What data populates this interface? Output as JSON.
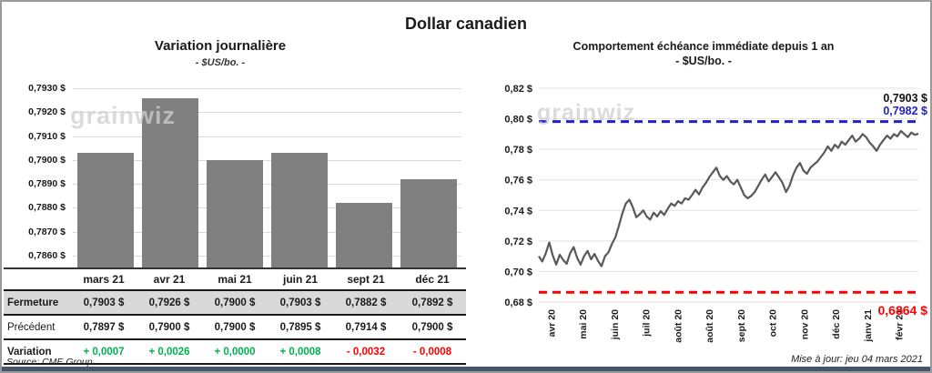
{
  "title": "Dollar canadien",
  "watermark_text": "grainwiz",
  "footer": {
    "source": "Source: CME Group",
    "updated": "Mise à jour: jeu 04 mars 2021"
  },
  "colors": {
    "bar": "#808080",
    "price_line": "#595959",
    "high_line": "#2222CC",
    "low_line": "#FF0000",
    "positive": "#00B050",
    "negative": "#FF0000",
    "highlight_row_bg": "#D9D9D9"
  },
  "table": {
    "columns": [
      "mars 21",
      "avr 21",
      "mai 21",
      "juin 21",
      "sept 21",
      "déc 21"
    ],
    "rows": [
      {
        "label": "Fermeture",
        "style": "hl",
        "values": [
          "0,7903 $",
          "0,7926 $",
          "0,7900 $",
          "0,7903 $",
          "0,7882 $",
          "0,7892 $"
        ]
      },
      {
        "label": "Précédent",
        "style": "plain",
        "values": [
          "0,7897 $",
          "0,7900 $",
          "0,7900 $",
          "0,7895 $",
          "0,7914 $",
          "0,7900 $"
        ]
      },
      {
        "label": "Variation",
        "style": "var",
        "values": [
          "+ 0,0007",
          "+ 0,0026",
          "+ 0,0000",
          "+ 0,0008",
          "- 0,0032",
          "- 0,0008"
        ],
        "value_signs": [
          "pos",
          "pos",
          "pos",
          "pos",
          "neg",
          "neg"
        ]
      }
    ]
  },
  "chart_data": [
    {
      "type": "bar",
      "title": "Variation  journalière",
      "subtitle": "- $US/bo. -",
      "xlabel": "",
      "ylabel": "$US/bo.",
      "categories": [
        "mars 21",
        "avr 21",
        "mai 21",
        "juin 21",
        "sept 21",
        "déc 21"
      ],
      "values": [
        0.7903,
        0.7926,
        0.79,
        0.7903,
        0.7882,
        0.7892
      ],
      "ylim": [
        0.7855,
        0.7932
      ],
      "grid": true,
      "legend_position": "none",
      "yticks": [
        0.786,
        0.787,
        0.788,
        0.789,
        0.79,
        0.791,
        0.792,
        0.793
      ],
      "ytick_labels": [
        "0,7860 $",
        "0,7870 $",
        "0,7880 $",
        "0,7890 $",
        "0,7900 $",
        "0,7910 $",
        "0,7920 $",
        "0,7930 $"
      ]
    },
    {
      "type": "line",
      "title": "Comportement échéance immédiate depuis 1 an",
      "subtitle": "- $US/bo. -",
      "xlabel": "",
      "ylabel": "$US/bo.",
      "x_labels": [
        "avr 20",
        "mai 20",
        "juin 20",
        "juil 20",
        "août 20",
        "août 20",
        "sept 20",
        "oct 20",
        "nov 20",
        "déc 20",
        "janv 21",
        "févr 21"
      ],
      "values": [
        0.71,
        0.7065,
        0.712,
        0.719,
        0.7105,
        0.7045,
        0.711,
        0.7075,
        0.705,
        0.712,
        0.716,
        0.709,
        0.7045,
        0.71,
        0.7135,
        0.708,
        0.7115,
        0.707,
        0.7035,
        0.71,
        0.7125,
        0.718,
        0.7225,
        0.73,
        0.738,
        0.7445,
        0.747,
        0.742,
        0.7355,
        0.7375,
        0.74,
        0.736,
        0.734,
        0.7385,
        0.736,
        0.7395,
        0.737,
        0.741,
        0.7445,
        0.743,
        0.746,
        0.7445,
        0.748,
        0.747,
        0.75,
        0.7535,
        0.7505,
        0.755,
        0.758,
        0.762,
        0.765,
        0.768,
        0.7625,
        0.76,
        0.7625,
        0.759,
        0.757,
        0.76,
        0.755,
        0.75,
        0.748,
        0.7495,
        0.752,
        0.756,
        0.76,
        0.7635,
        0.759,
        0.762,
        0.765,
        0.7615,
        0.758,
        0.752,
        0.756,
        0.763,
        0.768,
        0.771,
        0.766,
        0.764,
        0.768,
        0.77,
        0.772,
        0.775,
        0.778,
        0.782,
        0.779,
        0.783,
        0.781,
        0.785,
        0.783,
        0.786,
        0.789,
        0.785,
        0.787,
        0.79,
        0.788,
        0.7845,
        0.782,
        0.779,
        0.783,
        0.786,
        0.789,
        0.787,
        0.79,
        0.7885,
        0.792,
        0.79,
        0.788,
        0.791,
        0.7895,
        0.7903
      ],
      "ylim": [
        0.68,
        0.82
      ],
      "grid": true,
      "legend_position": "none",
      "yticks": [
        0.68,
        0.7,
        0.72,
        0.74,
        0.76,
        0.78,
        0.8,
        0.82
      ],
      "ytick_labels": [
        "0,68 $",
        "0,70 $",
        "0,72 $",
        "0,74 $",
        "0,76 $",
        "0,78 $",
        "0,80 $",
        "0,82 $"
      ],
      "last_value": 0.7903,
      "last_value_label": "0,7903 $",
      "reference_lines": [
        {
          "name": "high",
          "value": 0.7982,
          "label": "0,7982 $",
          "color": "#2222CC",
          "style": "dashed"
        },
        {
          "name": "low",
          "value": 0.6864,
          "label": "0,6864 $",
          "color": "#FF0000",
          "style": "dashed"
        }
      ]
    }
  ]
}
